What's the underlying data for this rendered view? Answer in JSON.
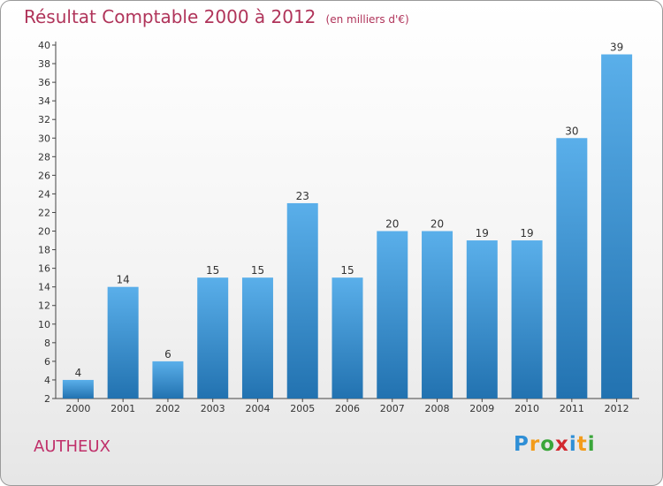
{
  "title": "Résultat Comptable 2000 à 2012",
  "subtitle": "(en milliers d'€)",
  "commune": "AUTHEUX",
  "brand": "Proxiti",
  "colors": {
    "title": "#b0345a",
    "bar_light": "#5aafea",
    "bar_dark": "#2272b0",
    "axis": "#444444"
  },
  "chart_data": {
    "type": "bar",
    "title": "Résultat Comptable 2000 à 2012",
    "subtitle": "(en milliers d'€)",
    "xlabel": "",
    "ylabel": "",
    "categories": [
      "2000",
      "2001",
      "2002",
      "2003",
      "2004",
      "2005",
      "2006",
      "2007",
      "2008",
      "2009",
      "2010",
      "2011",
      "2012"
    ],
    "values": [
      4,
      14,
      6,
      15,
      15,
      23,
      15,
      20,
      20,
      19,
      19,
      30,
      39
    ],
    "ylim": [
      2,
      40
    ],
    "yticks": [
      2,
      4,
      6,
      8,
      10,
      12,
      14,
      16,
      18,
      20,
      22,
      24,
      26,
      28,
      30,
      32,
      34,
      36,
      38,
      40
    ],
    "grid": false,
    "legend": "none"
  }
}
